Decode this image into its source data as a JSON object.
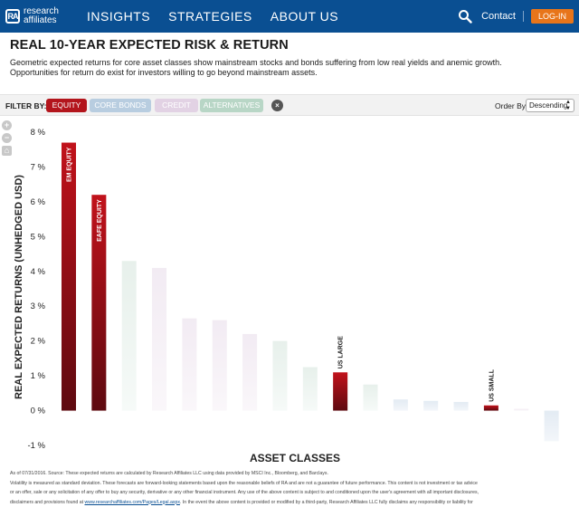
{
  "nav": {
    "logo_line1": "research",
    "logo_line2": "affiliates",
    "logo_mark": "RA",
    "links": [
      "INSIGHTS",
      "STRATEGIES",
      "ABOUT US"
    ],
    "contact": "Contact",
    "login": "LOG-IN"
  },
  "page": {
    "title": "REAL 10-YEAR EXPECTED RISK & RETURN",
    "description_line1": "Geometric expected returns for core asset classes show mainstream stocks and bonds suffering from low real yields and anemic growth.",
    "description_line2": "Opportunities for return do exist for investors willing to go beyond mainstream assets."
  },
  "filters": {
    "label": "FILTER BY:",
    "chips": [
      "EQUITY",
      "CORE BONDS",
      "CREDIT",
      "ALTERNATIVES"
    ],
    "clear_symbol": "×",
    "order_label": "Order By",
    "order_value": "Descending"
  },
  "colors": {
    "nav_bg": "#0a4f92",
    "equity": "#b3151c",
    "core_bonds": "#b8cde0",
    "credit": "#e2d2e4",
    "alternatives": "#b8d6c6",
    "login": "#e8751a"
  },
  "chart_data": {
    "type": "bar",
    "xlabel": "ASSET CLASSES",
    "ylabel": "REAL EXPECTED RETURNS (UNHEDGED USD)",
    "ylim": [
      -1,
      8
    ],
    "yticks": [
      "8 %",
      "7 %",
      "6 %",
      "5 %",
      "4 %",
      "3 %",
      "2 %",
      "1 %",
      "0 %",
      "-1 %"
    ],
    "grid": false,
    "bars": [
      {
        "label": "EM EQUITY",
        "value": 7.7,
        "group": "equity"
      },
      {
        "label": "EAFE EQUITY",
        "value": 6.2,
        "group": "equity"
      },
      {
        "label": "",
        "value": 4.3,
        "group": "alternatives"
      },
      {
        "label": "",
        "value": 4.1,
        "group": "credit"
      },
      {
        "label": "",
        "value": 2.65,
        "group": "credit"
      },
      {
        "label": "",
        "value": 2.6,
        "group": "credit"
      },
      {
        "label": "",
        "value": 2.2,
        "group": "credit"
      },
      {
        "label": "",
        "value": 2.0,
        "group": "alternatives"
      },
      {
        "label": "",
        "value": 1.25,
        "group": "alternatives"
      },
      {
        "label": "US LARGE",
        "value": 1.1,
        "group": "equity"
      },
      {
        "label": "",
        "value": 0.75,
        "group": "alternatives"
      },
      {
        "label": "",
        "value": 0.32,
        "group": "core_bonds"
      },
      {
        "label": "",
        "value": 0.28,
        "group": "core_bonds"
      },
      {
        "label": "",
        "value": 0.25,
        "group": "core_bonds"
      },
      {
        "label": "US SMALL",
        "value": 0.15,
        "group": "equity"
      },
      {
        "label": "",
        "value": 0.05,
        "group": "credit"
      },
      {
        "label": "",
        "value": -0.88,
        "group": "core_bonds"
      }
    ]
  },
  "footnote": {
    "line1": "As of 07/31/2016. Source: These expected returns are calculated by Research Affiliates LLC using data provided by MSCI Inc., Bloomberg, and Barclays.",
    "line2": "Volatility is measured as standard deviation. These forecasts are forward-looking statements based upon the reasonable beliefs of RA and are not a guarantee of future performance. This content is not investment or tax advice",
    "line3": "or an offer, sale or any solicitation of any offer to buy any security, derivative or any other financial instrument. Any use of the above content is subject to and conditioned upon the user's agreement with all important disclosures,",
    "line4_a": "disclaimers and provisions found at",
    "line4_link": "www.researchaffiliates.com/Pages/Legal.aspx",
    "line4_b": ". In the event the above content is provided or modified by a third-party, Research Affiliates LLC fully disclaims any responsibility or liability for"
  }
}
